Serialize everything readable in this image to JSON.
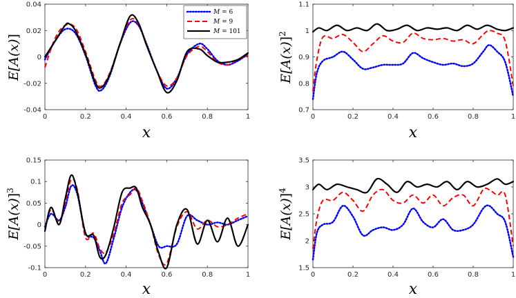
{
  "legend": [
    {
      "name": "M",
      "value": "6",
      "eq": " = ",
      "style": "dotted",
      "color": "#0000ff"
    },
    {
      "name": "M",
      "value": "9",
      "eq": " = ",
      "style": "dashed",
      "color": "#ff0000"
    },
    {
      "name": "M",
      "value": "101",
      "eq": " = ",
      "style": "solid",
      "color": "#000000"
    }
  ],
  "chart_data": [
    {
      "type": "line",
      "xlabel": "x",
      "ylabel": {
        "base": "E[A(x)",
        "close": "]",
        "power": ""
      },
      "xlim": [
        0,
        1
      ],
      "ylim": [
        -0.04,
        0.04
      ],
      "xticks": [
        0,
        0.2,
        0.4,
        0.6,
        0.8,
        1
      ],
      "xticklabels": [
        "0",
        "0.2",
        "0.4",
        "0.6",
        "0.8",
        "1"
      ],
      "yticks": [
        -0.04,
        -0.02,
        0,
        0.02,
        0.04
      ],
      "yticklabels": [
        "-0.04",
        "-0.02",
        "0",
        "0.02",
        "0.04"
      ],
      "legend_location": "top-right",
      "series": [
        {
          "name": "M = 6",
          "x": [
            0,
            0.05,
            0.1,
            0.15,
            0.2,
            0.25,
            0.28,
            0.32,
            0.37,
            0.42,
            0.46,
            0.5,
            0.55,
            0.6,
            0.65,
            0.7,
            0.76,
            0.8,
            0.85,
            0.9,
            0.95,
            1
          ],
          "y": [
            -0.002,
            0.012,
            0.021,
            0.018,
            0.001,
            -0.022,
            -0.025,
            -0.014,
            0.01,
            0.026,
            0.024,
            0.01,
            -0.01,
            -0.024,
            -0.016,
            0.002,
            0.01,
            0.006,
            -0.003,
            -0.006,
            -0.003,
            0.002
          ]
        },
        {
          "name": "M = 9",
          "x": [
            0,
            0.05,
            0.1,
            0.15,
            0.2,
            0.25,
            0.28,
            0.32,
            0.37,
            0.42,
            0.46,
            0.5,
            0.55,
            0.6,
            0.65,
            0.7,
            0.76,
            0.8,
            0.85,
            0.9,
            0.95,
            1
          ],
          "y": [
            -0.008,
            0.014,
            0.024,
            0.022,
            0.004,
            -0.018,
            -0.022,
            -0.012,
            0.01,
            0.028,
            0.025,
            0.01,
            -0.01,
            -0.022,
            -0.016,
            0.001,
            0.008,
            0.004,
            -0.004,
            -0.006,
            -0.002,
            0.001
          ]
        },
        {
          "name": "M = 101",
          "x": [
            0,
            0.05,
            0.1,
            0.12,
            0.15,
            0.2,
            0.25,
            0.28,
            0.32,
            0.37,
            0.42,
            0.46,
            0.5,
            0.55,
            0.6,
            0.65,
            0.7,
            0.76,
            0.8,
            0.85,
            0.9,
            0.95,
            1
          ],
          "y": [
            0,
            0.012,
            0.024,
            0.025,
            0.02,
            0.002,
            -0.02,
            -0.023,
            -0.013,
            0.01,
            0.031,
            0.026,
            0.009,
            -0.01,
            -0.027,
            -0.018,
            0.004,
            0.006,
            0.001,
            -0.004,
            -0.004,
            -0.002,
            0.003
          ]
        }
      ]
    },
    {
      "type": "line",
      "xlabel": "x",
      "ylabel": {
        "base": "E[A(x)",
        "close": "]",
        "power": "2"
      },
      "xlim": [
        0,
        1
      ],
      "ylim": [
        0.7,
        1.1
      ],
      "xticks": [
        0,
        0.2,
        0.4,
        0.6,
        0.8,
        1
      ],
      "xticklabels": [
        "0",
        "0.2",
        "0.4",
        "0.6",
        "0.8",
        "1"
      ],
      "yticks": [
        0.7,
        0.8,
        0.9,
        1,
        1.1
      ],
      "yticklabels": [
        "0.7",
        "0.8",
        "0.9",
        "1",
        "1.1"
      ],
      "series": [
        {
          "name": "M = 6",
          "x": [
            0,
            0.02,
            0.05,
            0.1,
            0.15,
            0.2,
            0.25,
            0.3,
            0.35,
            0.4,
            0.45,
            0.5,
            0.55,
            0.6,
            0.65,
            0.7,
            0.75,
            0.8,
            0.85,
            0.88,
            0.92,
            0.96,
            1
          ],
          "y": [
            0.74,
            0.84,
            0.885,
            0.9,
            0.92,
            0.89,
            0.855,
            0.86,
            0.87,
            0.87,
            0.875,
            0.915,
            0.895,
            0.88,
            0.87,
            0.875,
            0.865,
            0.875,
            0.92,
            0.945,
            0.92,
            0.88,
            0.75
          ]
        },
        {
          "name": "M = 9",
          "x": [
            0,
            0.02,
            0.05,
            0.1,
            0.15,
            0.2,
            0.25,
            0.3,
            0.35,
            0.4,
            0.45,
            0.5,
            0.55,
            0.6,
            0.65,
            0.7,
            0.75,
            0.8,
            0.85,
            0.88,
            0.92,
            0.96,
            1
          ],
          "y": [
            0.77,
            0.89,
            0.975,
            0.97,
            0.985,
            0.955,
            0.92,
            0.95,
            0.98,
            0.96,
            0.955,
            0.99,
            0.97,
            0.965,
            0.97,
            0.96,
            0.965,
            0.95,
            0.985,
            1.0,
            0.99,
            0.96,
            0.79
          ]
        },
        {
          "name": "M = 101",
          "x": [
            0,
            0.03,
            0.07,
            0.12,
            0.17,
            0.22,
            0.27,
            0.32,
            0.37,
            0.42,
            0.47,
            0.52,
            0.57,
            0.62,
            0.67,
            0.72,
            0.77,
            0.82,
            0.87,
            0.92,
            0.96,
            1
          ],
          "y": [
            0.995,
            1.01,
            1.0,
            1.02,
            1.0,
            1.01,
            1.0,
            1.025,
            1.0,
            1.005,
            1.02,
            1.0,
            1.01,
            1.005,
            1.01,
            1.0,
            1.02,
            1.005,
            1.02,
            1.005,
            1.0,
            1.01
          ]
        }
      ]
    },
    {
      "type": "line",
      "xlabel": "x",
      "ylabel": {
        "base": "E[A(x)",
        "close": "]",
        "power": "3"
      },
      "xlim": [
        0,
        1
      ],
      "ylim": [
        -0.1,
        0.15
      ],
      "xticks": [
        0,
        0.2,
        0.4,
        0.6,
        0.8,
        1
      ],
      "xticklabels": [
        "0",
        "0.2",
        "0.4",
        "0.6",
        "0.8",
        "1"
      ],
      "yticks": [
        -0.1,
        -0.05,
        0,
        0.05,
        0.1,
        0.15
      ],
      "yticklabels": [
        "-0.1",
        "-0.05",
        "0",
        "0.05",
        "0.1",
        "0.15"
      ],
      "series": [
        {
          "name": "M = 6",
          "x": [
            0,
            0.03,
            0.07,
            0.1,
            0.13,
            0.16,
            0.2,
            0.24,
            0.27,
            0.3,
            0.34,
            0.38,
            0.42,
            0.45,
            0.48,
            0.52,
            0.56,
            0.6,
            0.65,
            0.7,
            0.75,
            0.8,
            0.85,
            0.9,
            0.95,
            1
          ],
          "y": [
            -0.005,
            0.025,
            0.01,
            0.04,
            0.09,
            0.07,
            -0.02,
            -0.03,
            -0.06,
            -0.09,
            -0.03,
            0.04,
            0.075,
            0.08,
            0.05,
            0.0,
            -0.05,
            -0.05,
            -0.045,
            0.02,
            0.01,
            0.0,
            0.005,
            0.0,
            0.01,
            0.02
          ]
        },
        {
          "name": "M = 9",
          "x": [
            0,
            0.03,
            0.07,
            0.1,
            0.13,
            0.16,
            0.2,
            0.24,
            0.27,
            0.3,
            0.34,
            0.38,
            0.42,
            0.45,
            0.48,
            0.52,
            0.56,
            0.6,
            0.65,
            0.7,
            0.75,
            0.8,
            0.85,
            0.9,
            0.95,
            1
          ],
          "y": [
            -0.01,
            0.035,
            0.005,
            0.05,
            0.105,
            0.08,
            -0.03,
            -0.02,
            -0.055,
            -0.065,
            -0.02,
            0.05,
            0.07,
            0.085,
            0.055,
            0.0,
            -0.07,
            -0.09,
            -0.005,
            0.03,
            -0.01,
            0.01,
            -0.005,
            0.0,
            0.015,
            0.025
          ]
        },
        {
          "name": "M = 101",
          "x": [
            0,
            0.03,
            0.07,
            0.1,
            0.13,
            0.16,
            0.2,
            0.24,
            0.27,
            0.3,
            0.34,
            0.38,
            0.42,
            0.45,
            0.48,
            0.52,
            0.56,
            0.6,
            0.65,
            0.7,
            0.75,
            0.8,
            0.85,
            0.9,
            0.95,
            1
          ],
          "y": [
            -0.015,
            0.04,
            0.0,
            0.06,
            0.115,
            0.075,
            -0.02,
            -0.025,
            -0.075,
            -0.07,
            -0.005,
            0.075,
            0.085,
            0.085,
            0.04,
            0.0,
            -0.065,
            -0.1,
            0.0,
            0.035,
            -0.045,
            0.01,
            -0.04,
            0.015,
            -0.05,
            0.0
          ]
        }
      ]
    },
    {
      "type": "line",
      "xlabel": "x",
      "ylabel": {
        "base": "E[A(x)",
        "close": "]",
        "power": "4"
      },
      "xlim": [
        0,
        1
      ],
      "ylim": [
        1.5,
        3.5
      ],
      "xticks": [
        0,
        0.2,
        0.4,
        0.6,
        0.8,
        1
      ],
      "xticklabels": [
        "0",
        "0.2",
        "0.4",
        "0.6",
        "0.8",
        "1"
      ],
      "yticks": [
        1.5,
        2,
        2.5,
        3,
        3.5
      ],
      "yticklabels": [
        "1.5",
        "2",
        "2.5",
        "3",
        "3.5"
      ],
      "series": [
        {
          "name": "M = 6",
          "x": [
            0,
            0.02,
            0.05,
            0.1,
            0.15,
            0.2,
            0.25,
            0.3,
            0.35,
            0.4,
            0.45,
            0.5,
            0.55,
            0.6,
            0.65,
            0.7,
            0.75,
            0.8,
            0.85,
            0.88,
            0.92,
            0.96,
            1
          ],
          "y": [
            1.65,
            2.15,
            2.3,
            2.35,
            2.65,
            2.45,
            2.1,
            2.2,
            2.25,
            2.2,
            2.3,
            2.6,
            2.35,
            2.25,
            2.4,
            2.2,
            2.2,
            2.3,
            2.6,
            2.65,
            2.5,
            2.35,
            1.7
          ]
        },
        {
          "name": "M = 9",
          "x": [
            0,
            0.02,
            0.05,
            0.1,
            0.15,
            0.2,
            0.25,
            0.3,
            0.35,
            0.4,
            0.45,
            0.5,
            0.55,
            0.6,
            0.65,
            0.7,
            0.75,
            0.8,
            0.85,
            0.88,
            0.92,
            0.96,
            1
          ],
          "y": [
            1.85,
            2.4,
            2.75,
            2.75,
            2.9,
            2.75,
            2.55,
            2.85,
            2.95,
            2.75,
            2.7,
            2.85,
            2.7,
            2.85,
            2.65,
            2.8,
            2.85,
            2.65,
            2.95,
            2.95,
            2.85,
            2.85,
            1.9
          ]
        },
        {
          "name": "M = 101",
          "x": [
            0,
            0.03,
            0.07,
            0.12,
            0.17,
            0.22,
            0.27,
            0.32,
            0.37,
            0.42,
            0.47,
            0.52,
            0.57,
            0.62,
            0.67,
            0.72,
            0.77,
            0.82,
            0.87,
            0.92,
            0.96,
            1
          ],
          "y": [
            2.95,
            3.05,
            2.95,
            3.05,
            3.0,
            2.95,
            2.9,
            3.15,
            3.05,
            2.9,
            3.1,
            3.0,
            3.05,
            3.0,
            3.1,
            2.95,
            3.1,
            3.0,
            3.05,
            3.15,
            3.05,
            3.1
          ]
        }
      ]
    }
  ]
}
